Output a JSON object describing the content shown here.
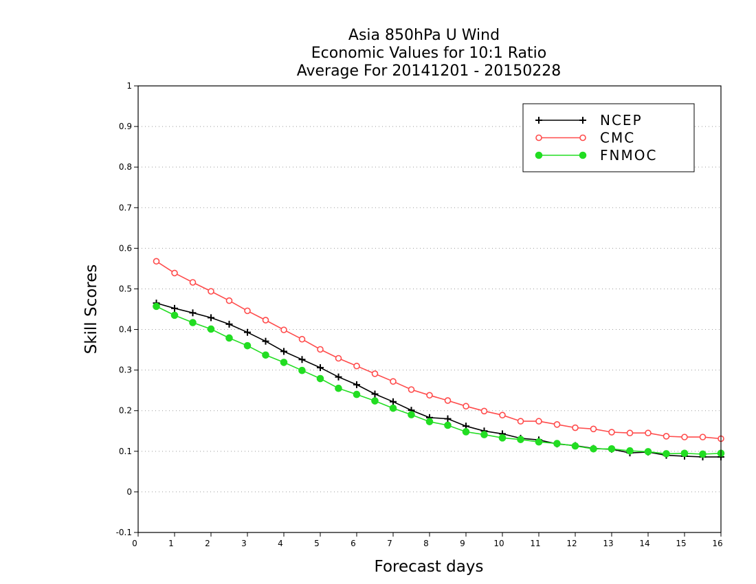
{
  "chart_data": {
    "type": "line",
    "title_lines": [
      "Asia 850hPa U Wind",
      "Economic Values for 10:1 Ratio",
      "Average For 20141201 - 20150228"
    ],
    "xlabel": "Forecast days",
    "ylabel": "Skill Scores",
    "xlim": [
      0,
      16
    ],
    "ylim": [
      -0.1,
      1
    ],
    "x_ticks": [
      0,
      1,
      2,
      3,
      4,
      5,
      6,
      7,
      8,
      9,
      10,
      11,
      12,
      13,
      14,
      15,
      16
    ],
    "x_tick_labels": [
      "0",
      "1",
      "2",
      "3",
      "4",
      "5",
      "6",
      "7",
      "8",
      "9",
      "10",
      "11",
      "12",
      "13",
      "14",
      "15",
      "16"
    ],
    "y_ticks": [
      -0.1,
      0,
      0.1,
      0.2,
      0.3,
      0.4,
      0.5,
      0.6,
      0.7,
      0.8,
      0.9,
      1
    ],
    "y_tick_labels": [
      "-0.1",
      "0",
      "0.1",
      "0.2",
      "0.3",
      "0.4",
      "0.5",
      "0.6",
      "0.7",
      "0.8",
      "0.9",
      "1"
    ],
    "grid": "horizontal dotted",
    "legend_position": "top-right",
    "x": [
      0.5,
      1,
      1.5,
      2,
      2.5,
      3,
      3.5,
      4,
      4.5,
      5,
      5.5,
      6,
      6.5,
      7,
      7.5,
      8,
      8.5,
      9,
      9.5,
      10,
      10.5,
      11,
      11.5,
      12,
      12.5,
      13,
      13.5,
      14,
      14.5,
      15,
      15.5,
      16
    ],
    "series": [
      {
        "name": "NCEP",
        "color": "#000000",
        "marker": "plus",
        "values": [
          0.465,
          0.452,
          0.441,
          0.429,
          0.413,
          0.393,
          0.371,
          0.346,
          0.326,
          0.306,
          0.283,
          0.264,
          0.241,
          0.222,
          0.201,
          0.183,
          0.18,
          0.162,
          0.15,
          0.143,
          0.132,
          0.128,
          0.118,
          0.114,
          0.107,
          0.105,
          0.096,
          0.098,
          0.09,
          0.088,
          0.086,
          0.086
        ]
      },
      {
        "name": "CMC",
        "color": "#ff4b4b",
        "marker": "open-circle",
        "values": [
          0.568,
          0.539,
          0.516,
          0.494,
          0.471,
          0.446,
          0.423,
          0.399,
          0.376,
          0.351,
          0.329,
          0.31,
          0.291,
          0.272,
          0.252,
          0.238,
          0.225,
          0.211,
          0.199,
          0.189,
          0.174,
          0.174,
          0.166,
          0.158,
          0.155,
          0.147,
          0.145,
          0.145,
          0.137,
          0.135,
          0.135,
          0.131
        ]
      },
      {
        "name": "FNMOC",
        "color": "#22dd22",
        "marker": "filled-circle",
        "values": [
          0.457,
          0.435,
          0.417,
          0.401,
          0.379,
          0.36,
          0.337,
          0.319,
          0.299,
          0.279,
          0.255,
          0.24,
          0.224,
          0.206,
          0.19,
          0.173,
          0.164,
          0.148,
          0.141,
          0.133,
          0.129,
          0.123,
          0.119,
          0.113,
          0.106,
          0.106,
          0.101,
          0.099,
          0.094,
          0.095,
          0.093,
          0.095
        ]
      }
    ]
  }
}
